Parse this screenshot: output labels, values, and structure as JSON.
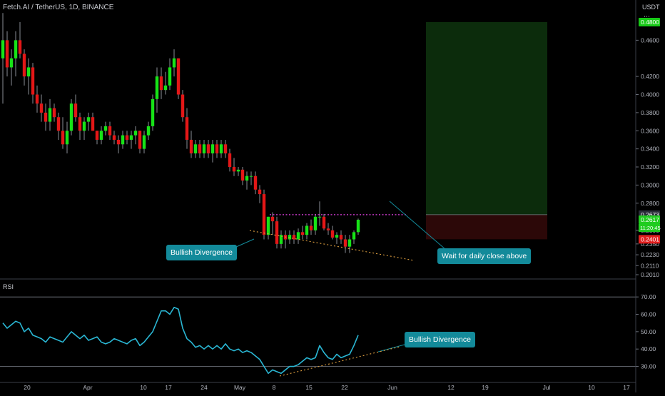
{
  "header": {
    "title": "Fetch.AI / TetherUS, 1D, BINANCE",
    "currency": "USDT"
  },
  "rsi_label": "RSI",
  "callouts": {
    "divergence_price": "Bullish Divergence",
    "wait": "Wait for daily close above",
    "divergence_rsi": "Bullish Divergence"
  },
  "colors": {
    "up": "#17e317",
    "down": "#e31717",
    "wick": "#8a8e96",
    "bg": "#000000",
    "grid": "#2a2e39",
    "callout": "#138a9a",
    "resistance": "#e040e0",
    "trendline": "#e0a040",
    "rsi": "#2ab7d4",
    "target_zone": "#0c2c0c",
    "stop_zone": "#2c0808",
    "target_label": "#17c917",
    "stop_label": "#e01e1e",
    "current_label": "#1fcc1f",
    "entry_label": "#2a2e39"
  },
  "chart_data": [
    {
      "type": "candlestick",
      "title": "Fetch.AI / TetherUS, 1D, BINANCE",
      "y_unit": "USDT",
      "ylim": [
        0.201,
        0.51
      ],
      "y_ticks": [
        "0.4800",
        "0.4600",
        "0.4200",
        "0.4000",
        "0.3800",
        "0.3600",
        "0.3400",
        "0.3200",
        "0.3000",
        "0.2800",
        "0.2673",
        "0.2617",
        "0.2500",
        "0.2401",
        "0.2350",
        "0.2230",
        "0.2110",
        "0.2010"
      ],
      "x_ticks": [
        "20",
        "Apr",
        "10",
        "17",
        "24",
        "May",
        "8",
        "15",
        "22",
        "Jun",
        "12",
        "19",
        "Jul",
        "10",
        "17"
      ],
      "ohlc": [
        [
          0.44,
          0.49,
          0.39,
          0.46
        ],
        [
          0.46,
          0.47,
          0.42,
          0.43
        ],
        [
          0.43,
          0.45,
          0.41,
          0.44
        ],
        [
          0.44,
          0.47,
          0.42,
          0.46
        ],
        [
          0.46,
          0.48,
          0.44,
          0.445
        ],
        [
          0.445,
          0.45,
          0.41,
          0.42
        ],
        [
          0.42,
          0.44,
          0.4,
          0.43
        ],
        [
          0.43,
          0.435,
          0.39,
          0.4
        ],
        [
          0.4,
          0.41,
          0.38,
          0.39
        ],
        [
          0.39,
          0.4,
          0.37,
          0.38
        ],
        [
          0.38,
          0.39,
          0.36,
          0.37
        ],
        [
          0.37,
          0.395,
          0.36,
          0.385
        ],
        [
          0.385,
          0.39,
          0.37,
          0.375
        ],
        [
          0.375,
          0.38,
          0.35,
          0.36
        ],
        [
          0.36,
          0.375,
          0.34,
          0.345
        ],
        [
          0.345,
          0.37,
          0.335,
          0.36
        ],
        [
          0.36,
          0.395,
          0.355,
          0.39
        ],
        [
          0.39,
          0.4,
          0.37,
          0.375
        ],
        [
          0.375,
          0.38,
          0.35,
          0.36
        ],
        [
          0.36,
          0.375,
          0.35,
          0.37
        ],
        [
          0.37,
          0.38,
          0.36,
          0.375
        ],
        [
          0.375,
          0.38,
          0.36,
          0.36
        ],
        [
          0.36,
          0.36,
          0.345,
          0.35
        ],
        [
          0.35,
          0.365,
          0.345,
          0.36
        ],
        [
          0.36,
          0.37,
          0.355,
          0.365
        ],
        [
          0.365,
          0.37,
          0.35,
          0.355
        ],
        [
          0.355,
          0.36,
          0.345,
          0.35
        ],
        [
          0.35,
          0.355,
          0.335,
          0.345
        ],
        [
          0.345,
          0.36,
          0.34,
          0.355
        ],
        [
          0.355,
          0.36,
          0.345,
          0.35
        ],
        [
          0.35,
          0.36,
          0.34,
          0.355
        ],
        [
          0.355,
          0.365,
          0.345,
          0.36
        ],
        [
          0.36,
          0.36,
          0.335,
          0.34
        ],
        [
          0.34,
          0.36,
          0.335,
          0.355
        ],
        [
          0.355,
          0.37,
          0.35,
          0.365
        ],
        [
          0.365,
          0.4,
          0.36,
          0.395
        ],
        [
          0.395,
          0.43,
          0.38,
          0.42
        ],
        [
          0.42,
          0.43,
          0.395,
          0.405
        ],
        [
          0.405,
          0.425,
          0.4,
          0.41
        ],
        [
          0.41,
          0.44,
          0.405,
          0.43
        ],
        [
          0.43,
          0.45,
          0.42,
          0.44
        ],
        [
          0.44,
          0.44,
          0.395,
          0.4
        ],
        [
          0.4,
          0.405,
          0.37,
          0.375
        ],
        [
          0.375,
          0.385,
          0.34,
          0.35
        ],
        [
          0.35,
          0.36,
          0.33,
          0.335
        ],
        [
          0.335,
          0.35,
          0.33,
          0.345
        ],
        [
          0.345,
          0.35,
          0.33,
          0.335
        ],
        [
          0.335,
          0.35,
          0.33,
          0.345
        ],
        [
          0.345,
          0.35,
          0.33,
          0.335
        ],
        [
          0.335,
          0.35,
          0.325,
          0.345
        ],
        [
          0.345,
          0.35,
          0.33,
          0.335
        ],
        [
          0.335,
          0.35,
          0.33,
          0.345
        ],
        [
          0.345,
          0.35,
          0.33,
          0.335
        ],
        [
          0.335,
          0.34,
          0.315,
          0.32
        ],
        [
          0.32,
          0.33,
          0.31,
          0.315
        ],
        [
          0.315,
          0.32,
          0.31,
          0.317
        ],
        [
          0.317,
          0.32,
          0.3,
          0.305
        ],
        [
          0.305,
          0.315,
          0.295,
          0.31
        ],
        [
          0.31,
          0.315,
          0.3,
          0.31
        ],
        [
          0.31,
          0.315,
          0.29,
          0.295
        ],
        [
          0.295,
          0.3,
          0.28,
          0.29
        ],
        [
          0.29,
          0.295,
          0.24,
          0.245
        ],
        [
          0.245,
          0.265,
          0.24,
          0.265
        ],
        [
          0.265,
          0.27,
          0.245,
          0.26
        ],
        [
          0.26,
          0.265,
          0.23,
          0.235
        ],
        [
          0.235,
          0.25,
          0.23,
          0.245
        ],
        [
          0.245,
          0.25,
          0.23,
          0.24
        ],
        [
          0.24,
          0.25,
          0.235,
          0.245
        ],
        [
          0.245,
          0.25,
          0.235,
          0.24
        ],
        [
          0.24,
          0.252,
          0.235,
          0.248
        ],
        [
          0.248,
          0.255,
          0.24,
          0.245
        ],
        [
          0.245,
          0.258,
          0.24,
          0.255
        ],
        [
          0.255,
          0.262,
          0.245,
          0.25
        ],
        [
          0.25,
          0.268,
          0.245,
          0.265
        ],
        [
          0.265,
          0.282,
          0.255,
          0.265
        ],
        [
          0.265,
          0.268,
          0.25,
          0.252
        ],
        [
          0.252,
          0.258,
          0.245,
          0.25
        ],
        [
          0.25,
          0.255,
          0.24,
          0.242
        ],
        [
          0.242,
          0.248,
          0.235,
          0.245
        ],
        [
          0.245,
          0.25,
          0.235,
          0.24
        ],
        [
          0.24,
          0.245,
          0.225,
          0.232
        ],
        [
          0.232,
          0.245,
          0.225,
          0.24
        ],
        [
          0.24,
          0.25,
          0.235,
          0.248
        ],
        [
          0.248,
          0.263,
          0.245,
          0.2617
        ]
      ],
      "annotations": {
        "resistance": 0.2673,
        "target": 0.48,
        "entry": 0.2673,
        "stop": 0.2401,
        "current": 0.2617,
        "countdown": "11:20:45"
      }
    },
    {
      "type": "line",
      "title": "RSI",
      "ylim": [
        22,
        75
      ],
      "y_ticks": [
        70,
        60,
        50,
        40,
        30
      ],
      "threshold": 30,
      "values": [
        55,
        52,
        54,
        56,
        55,
        50,
        52,
        48,
        47,
        46,
        44,
        47,
        46,
        45,
        44,
        47,
        50,
        48,
        46,
        48,
        45,
        46,
        47,
        44,
        43,
        44,
        46,
        45,
        44,
        43,
        45,
        46,
        42,
        44,
        47,
        50,
        56,
        62,
        62,
        60,
        64,
        63,
        52,
        46,
        44,
        41,
        42,
        40,
        42,
        40,
        42,
        40,
        43,
        40,
        39,
        40,
        38,
        39,
        38,
        36,
        34,
        30,
        26,
        28,
        27,
        26,
        28,
        30,
        30,
        31,
        33,
        35,
        34,
        35,
        42,
        38,
        35,
        34,
        37,
        35,
        36,
        37,
        42,
        48
      ]
    }
  ]
}
